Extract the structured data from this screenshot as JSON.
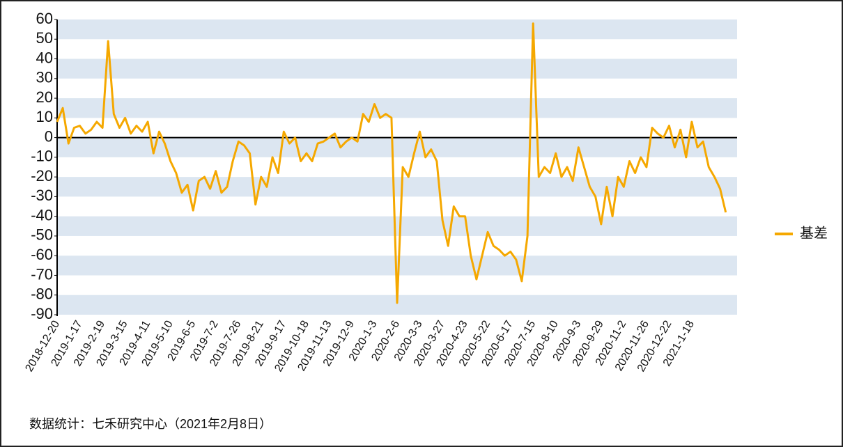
{
  "chart_data": {
    "type": "line",
    "categories": [
      "2018-12-20",
      null,
      null,
      null,
      "2019-1-17",
      null,
      null,
      null,
      "2019-2-19",
      null,
      null,
      null,
      "2019-3-15",
      null,
      null,
      null,
      "2019-4-11",
      null,
      null,
      null,
      "2019-5-10",
      null,
      null,
      null,
      "2019-6-5",
      null,
      null,
      null,
      "2019-7-2",
      null,
      null,
      null,
      "2019-7-26",
      null,
      null,
      null,
      "2019-8-21",
      null,
      null,
      null,
      "2019-9-17",
      null,
      null,
      null,
      "2019-10-18",
      null,
      null,
      null,
      "2019-11-13",
      null,
      null,
      null,
      "2019-12-9",
      null,
      null,
      null,
      "2020-1-3",
      null,
      null,
      null,
      "2020-2-6",
      null,
      null,
      null,
      "2020-3-3",
      null,
      null,
      null,
      "2020-3-27",
      null,
      null,
      null,
      "2020-4-23",
      null,
      null,
      null,
      "2020-5-22",
      null,
      null,
      null,
      "2020-6-17",
      null,
      null,
      null,
      "2020-7-15",
      null,
      null,
      null,
      "2020-8-10",
      null,
      null,
      null,
      "2020-9-3",
      null,
      null,
      null,
      "2020-9-29",
      null,
      null,
      null,
      "2020-11-2",
      null,
      null,
      null,
      "2020-11-26",
      null,
      null,
      null,
      "2020-12-22",
      null,
      null,
      null,
      "2021-1-18",
      null,
      null,
      null,
      null,
      null,
      null
    ],
    "series": [
      {
        "name": "基差",
        "color": "#f5a800",
        "values": [
          8,
          15,
          -3,
          5,
          6,
          2,
          4,
          8,
          5,
          49,
          12,
          5,
          10,
          2,
          6,
          3,
          8,
          -8,
          3,
          -3,
          -12,
          -18,
          -28,
          -24,
          -37,
          -22,
          -20,
          -26,
          -17,
          -28,
          -25,
          -12,
          -2,
          -4,
          -8,
          -34,
          -20,
          -25,
          -10,
          -18,
          3,
          -3,
          0,
          -12,
          -8,
          -12,
          -3,
          -2,
          0,
          2,
          -5,
          -2,
          0,
          -2,
          12,
          8,
          17,
          10,
          12,
          10,
          -84,
          -15,
          -20,
          -8,
          3,
          -10,
          -6,
          -12,
          -42,
          -55,
          -35,
          -40,
          -40,
          -60,
          -72,
          -60,
          -48,
          -55,
          -57,
          -60,
          -58,
          -62,
          -73,
          -50,
          58,
          -20,
          -15,
          -18,
          -8,
          -20,
          -15,
          -22,
          -5,
          -15,
          -25,
          -30,
          -44,
          -25,
          -40,
          -20,
          -25,
          -12,
          -18,
          -10,
          -15,
          5,
          2,
          0,
          6,
          -5,
          4,
          -10,
          8,
          -5,
          -2,
          -15,
          -20,
          -26,
          -38
        ]
      }
    ],
    "ylim": [
      -90,
      60
    ],
    "yticks": [
      60,
      50,
      40,
      30,
      20,
      10,
      0,
      -10,
      -20,
      -30,
      -40,
      -50,
      -60,
      -70,
      -80,
      -90
    ],
    "stripes": true,
    "legend": "right",
    "footnote": "数据统计：七禾研究中心（2021年2月8日）"
  }
}
